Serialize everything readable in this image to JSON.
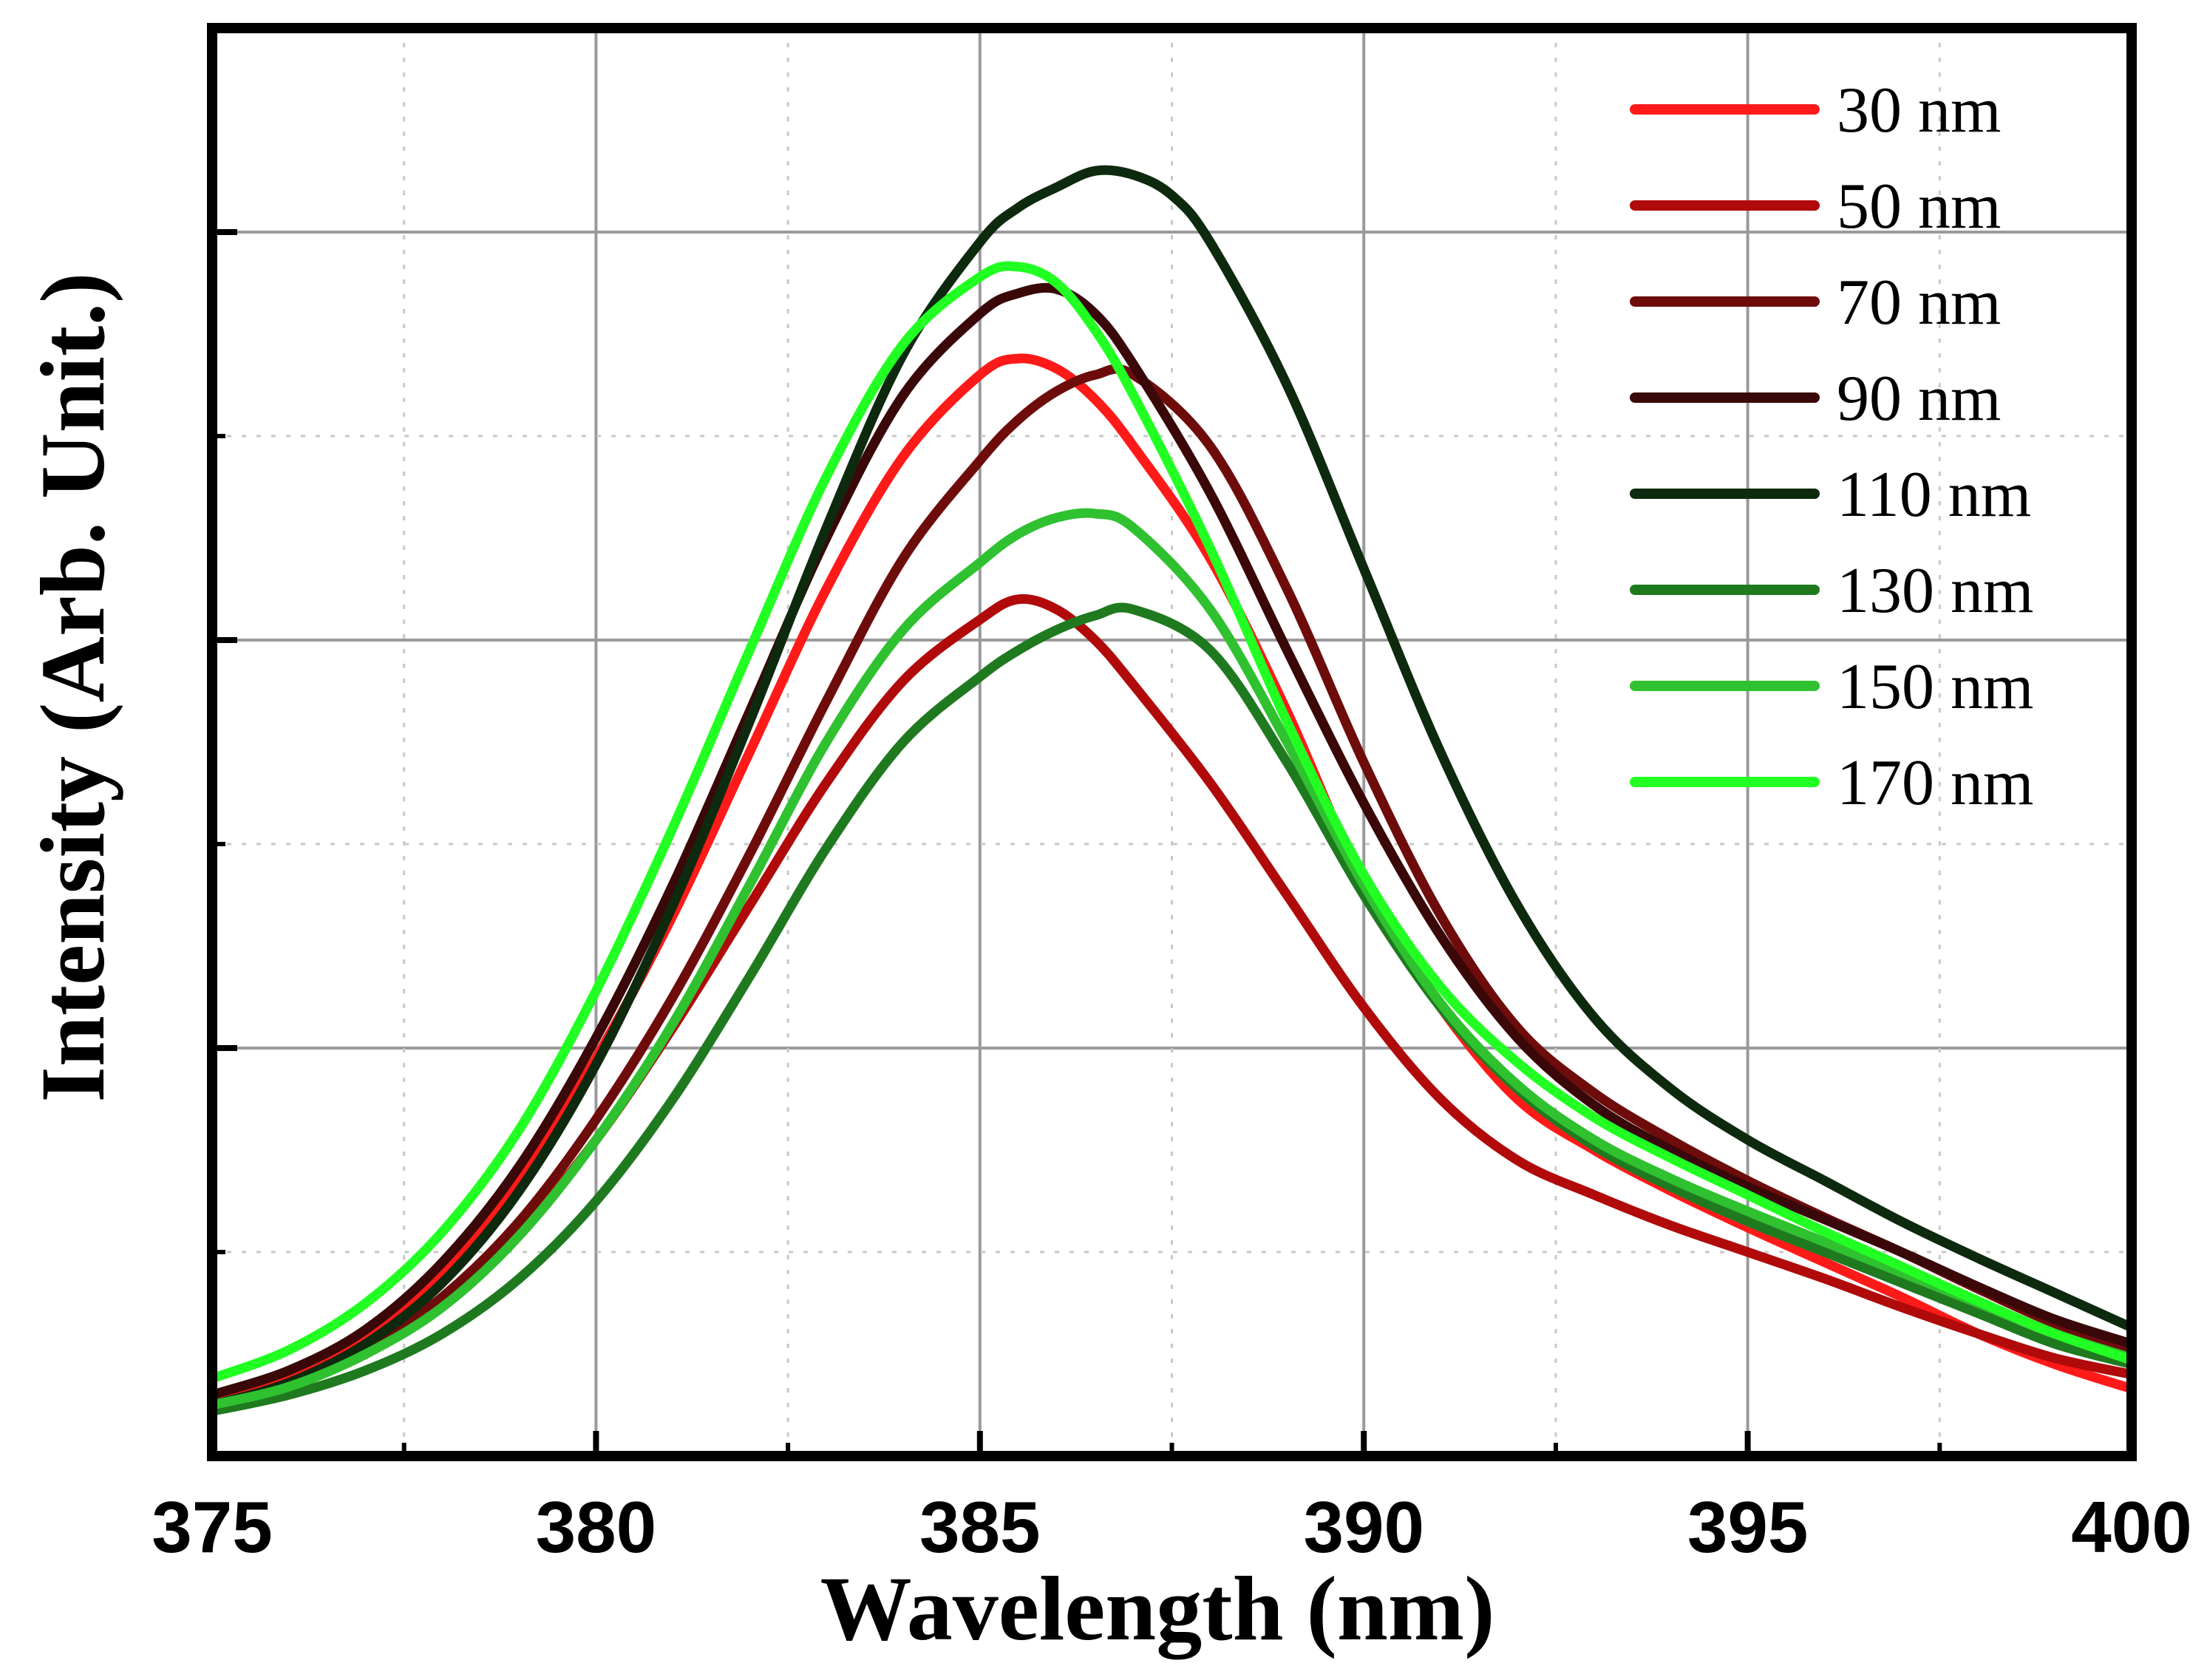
{
  "chart_data": {
    "type": "line",
    "title": "",
    "xlabel": "Wavelength (nm)",
    "ylabel": "Intensity (Arb. Unit.)",
    "xlim": [
      375,
      400
    ],
    "ylim": [
      0,
      7
    ],
    "xticks": [
      375,
      380,
      385,
      390,
      395,
      400
    ],
    "xtick_labels": [
      "375",
      "380",
      "385",
      "390",
      "395",
      "400"
    ],
    "yticks": [
      1,
      2,
      3,
      4,
      5,
      6
    ],
    "grid": true,
    "legend_position": "top-right",
    "series": [
      {
        "name": "30 nm",
        "color": "#ff1a1a",
        "x": [
          375,
          376,
          377,
          378,
          379,
          380,
          381,
          382,
          383,
          384,
          385,
          385.5,
          386,
          386.5,
          387,
          388,
          389,
          390,
          391,
          392,
          393,
          394,
          395,
          396,
          397,
          398,
          399,
          400
        ],
        "y": [
          0.3,
          0.4,
          0.6,
          0.9,
          1.35,
          1.95,
          2.65,
          3.45,
          4.25,
          4.9,
          5.3,
          5.38,
          5.33,
          5.18,
          4.95,
          4.4,
          3.65,
          2.8,
          2.2,
          1.75,
          1.5,
          1.3,
          1.12,
          0.95,
          0.78,
          0.6,
          0.45,
          0.33
        ]
      },
      {
        "name": "50 nm",
        "color": "#b00a0a",
        "x": [
          375,
          376,
          377,
          378,
          379,
          380,
          381,
          382,
          383,
          384,
          385,
          385.5,
          386,
          386.5,
          387,
          388,
          389,
          390,
          391,
          392,
          393,
          394,
          395,
          396,
          397,
          398,
          399,
          400
        ],
        "y": [
          0.25,
          0.35,
          0.5,
          0.75,
          1.1,
          1.55,
          2.1,
          2.7,
          3.3,
          3.8,
          4.1,
          4.2,
          4.15,
          4.0,
          3.78,
          3.3,
          2.75,
          2.2,
          1.75,
          1.45,
          1.28,
          1.13,
          1.0,
          0.87,
          0.73,
          0.6,
          0.48,
          0.4
        ]
      },
      {
        "name": "70 nm",
        "color": "#6e0c0c",
        "x": [
          375,
          376,
          377,
          378,
          379,
          380,
          381,
          382,
          383,
          384,
          385,
          385.5,
          386,
          386.5,
          387,
          388,
          389,
          390,
          391,
          392,
          393,
          394,
          395,
          396,
          397,
          398,
          399,
          400
        ],
        "y": [
          0.25,
          0.35,
          0.52,
          0.78,
          1.15,
          1.65,
          2.25,
          2.95,
          3.7,
          4.4,
          4.88,
          5.08,
          5.22,
          5.3,
          5.3,
          4.95,
          4.25,
          3.4,
          2.65,
          2.1,
          1.78,
          1.55,
          1.35,
          1.17,
          1.0,
          0.82,
          0.65,
          0.52
        ]
      },
      {
        "name": "90 nm",
        "color": "#3a0808",
        "x": [
          375,
          376,
          377,
          378,
          379,
          380,
          381,
          382,
          383,
          384,
          385,
          385.5,
          386,
          386.5,
          387,
          388,
          389,
          390,
          391,
          392,
          393,
          394,
          395,
          396,
          397,
          398,
          399,
          400
        ],
        "y": [
          0.3,
          0.42,
          0.62,
          0.95,
          1.42,
          2.05,
          2.8,
          3.65,
          4.5,
          5.2,
          5.6,
          5.7,
          5.72,
          5.6,
          5.35,
          4.72,
          3.95,
          3.2,
          2.55,
          2.05,
          1.72,
          1.5,
          1.32,
          1.16,
          1.0,
          0.83,
          0.67,
          0.55
        ]
      },
      {
        "name": "110 nm",
        "color": "#0e2a0e",
        "x": [
          375,
          376,
          377,
          378,
          379,
          380,
          381,
          382,
          383,
          384,
          385,
          385.5,
          386,
          386.5,
          387,
          387.5,
          388,
          389,
          390,
          391,
          392,
          393,
          394,
          395,
          396,
          397,
          398,
          399,
          400
        ],
        "y": [
          0.25,
          0.36,
          0.55,
          0.85,
          1.3,
          1.92,
          2.7,
          3.6,
          4.55,
          5.4,
          5.95,
          6.12,
          6.22,
          6.3,
          6.28,
          6.18,
          5.95,
          5.25,
          4.35,
          3.45,
          2.7,
          2.15,
          1.8,
          1.55,
          1.35,
          1.15,
          0.97,
          0.8,
          0.63
        ]
      },
      {
        "name": "130 nm",
        "color": "#1f7a1f",
        "x": [
          375,
          376,
          377,
          378,
          379,
          380,
          381,
          382,
          383,
          384,
          385,
          385.5,
          386,
          386.5,
          387,
          388,
          389,
          390,
          391,
          392,
          393,
          394,
          395,
          396,
          397,
          398,
          399,
          400
        ],
        "y": [
          0.22,
          0.3,
          0.42,
          0.6,
          0.87,
          1.25,
          1.75,
          2.35,
          2.98,
          3.5,
          3.82,
          3.95,
          4.05,
          4.12,
          4.15,
          3.95,
          3.4,
          2.75,
          2.2,
          1.8,
          1.52,
          1.32,
          1.15,
          1.0,
          0.85,
          0.7,
          0.55,
          0.45
        ]
      },
      {
        "name": "150 nm",
        "color": "#2fc12f",
        "x": [
          375,
          376,
          377,
          378,
          379,
          380,
          381,
          382,
          383,
          384,
          385,
          385.5,
          386,
          386.5,
          387,
          388,
          389,
          390,
          391,
          392,
          393,
          394,
          395,
          396,
          397,
          398,
          399,
          400
        ],
        "y": [
          0.25,
          0.34,
          0.5,
          0.73,
          1.08,
          1.55,
          2.12,
          2.8,
          3.5,
          4.05,
          4.38,
          4.52,
          4.6,
          4.62,
          4.55,
          4.15,
          3.5,
          2.8,
          2.22,
          1.82,
          1.55,
          1.36,
          1.2,
          1.05,
          0.9,
          0.75,
          0.6,
          0.48
        ]
      },
      {
        "name": "170 nm",
        "color": "#22ff22",
        "x": [
          375,
          376,
          377,
          378,
          379,
          380,
          381,
          382,
          383,
          384,
          385,
          385.5,
          386,
          386.5,
          387,
          388,
          389,
          390,
          391,
          392,
          393,
          394,
          395,
          396,
          397,
          398,
          399,
          400
        ],
        "y": [
          0.38,
          0.52,
          0.75,
          1.1,
          1.6,
          2.28,
          3.08,
          3.95,
          4.8,
          5.45,
          5.78,
          5.83,
          5.75,
          5.52,
          5.2,
          4.45,
          3.6,
          2.85,
          2.3,
          1.93,
          1.66,
          1.46,
          1.28,
          1.1,
          0.93,
          0.76,
          0.6,
          0.47
        ]
      }
    ]
  }
}
